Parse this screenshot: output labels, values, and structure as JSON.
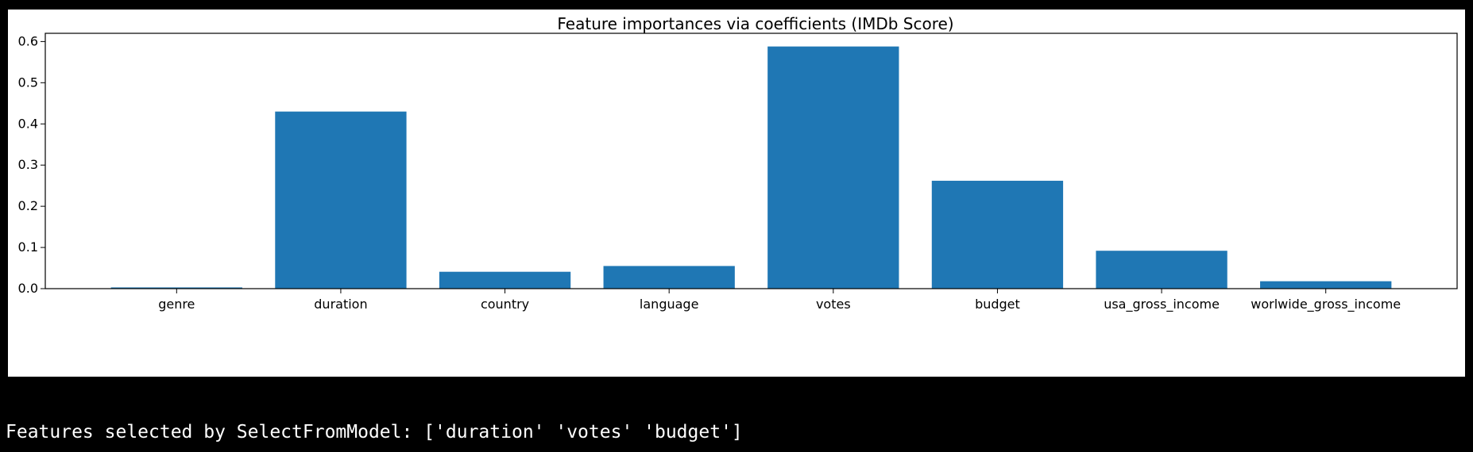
{
  "chart_data": {
    "type": "bar",
    "title": "Feature importances via coefficients (IMDb Score)",
    "xlabel": "",
    "ylabel": "",
    "categories": [
      "genre",
      "duration",
      "country",
      "language",
      "votes",
      "budget",
      "usa_gross_income",
      "worlwide_gross_income"
    ],
    "values": [
      0.003,
      0.43,
      0.041,
      0.055,
      0.588,
      0.262,
      0.092,
      0.018
    ],
    "ylim": [
      0,
      0.62
    ],
    "yticks": [
      "0.0",
      "0.1",
      "0.2",
      "0.3",
      "0.4",
      "0.5",
      "0.6"
    ],
    "bar_color": "#1f77b4",
    "grid": false,
    "legend": "none"
  },
  "output": {
    "text": "Features selected by SelectFromModel: ['duration' 'votes' 'budget']"
  }
}
